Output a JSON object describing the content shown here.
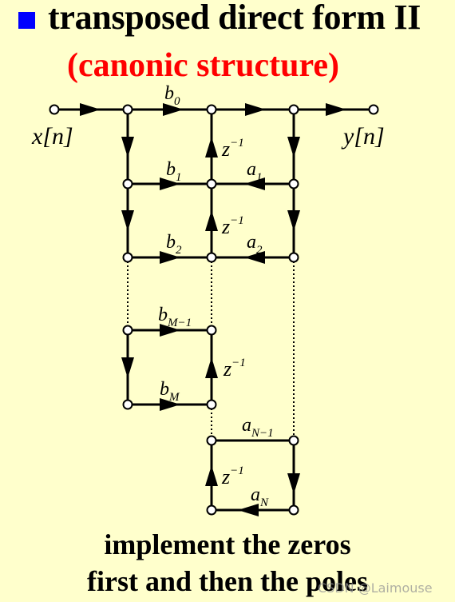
{
  "title": "transposed direct form II",
  "subtitle": "(canonic structure)",
  "labels": {
    "input": "x[n]",
    "output": "y[n]",
    "b0": {
      "base": "b",
      "sub": "0"
    },
    "b1": {
      "base": "b",
      "sub": "1"
    },
    "b2": {
      "base": "b",
      "sub": "2"
    },
    "bM1": {
      "base": "b",
      "sub": "M−1"
    },
    "bM": {
      "base": "b",
      "sub": "M"
    },
    "a1": {
      "base": "a",
      "sub": "1"
    },
    "a2": {
      "base": "a",
      "sub": "2"
    },
    "aN1": {
      "base": "a",
      "sub": "N−1"
    },
    "aN": {
      "base": "a",
      "sub": "N"
    },
    "delay": {
      "base": "z",
      "sup": "−1"
    }
  },
  "caption": {
    "line1": "implement the zeros",
    "line2": "first and then the poles"
  },
  "watermark": "CSDN @Laimouse",
  "colors": {
    "background": "#FFFFCC",
    "title": "#000000",
    "subtitle": "#FF0000",
    "bullet": "#0000FF"
  }
}
